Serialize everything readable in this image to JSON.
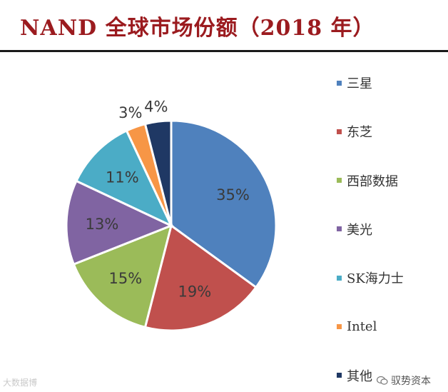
{
  "header": {
    "title": "NAND 全球市场份额（2018 年）"
  },
  "chart_data": {
    "type": "pie",
    "title": "NAND 全球市场份额（2018 年）",
    "categories": [
      "三星",
      "东芝",
      "西部数据",
      "美光",
      "SK海力士",
      "Intel",
      "其他"
    ],
    "values": [
      35,
      19,
      15,
      13,
      11,
      3,
      4
    ],
    "labels": [
      "35%",
      "19%",
      "15%",
      "13%",
      "11%",
      "3%",
      "4%"
    ],
    "colors": [
      "#4f81bd",
      "#c0504d",
      "#9bbb59",
      "#8064a2",
      "#4bacc6",
      "#f79646",
      "#1f3864"
    ],
    "legend_position": "right"
  },
  "watermarks": {
    "left": "大数据博",
    "right": "驭势资本"
  }
}
